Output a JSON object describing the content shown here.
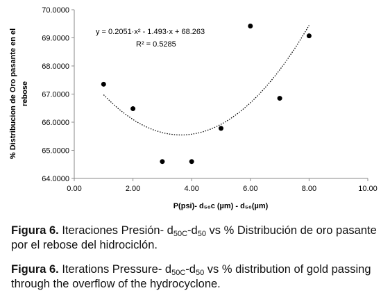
{
  "chart_data": {
    "type": "scatter",
    "xlabel": "P(psi)- d₅₀c (µm) - d₅₀(µm)",
    "ylabel_line1": "% Distribucion de Oro pasante en el",
    "ylabel_line2": "rebose",
    "xlim": [
      0,
      10
    ],
    "ylim": [
      64,
      70
    ],
    "xticks": [
      0,
      2,
      4,
      6,
      8,
      10
    ],
    "xtick_labels": [
      "0.00",
      "2.00",
      "4.00",
      "6.00",
      "8.00",
      "10.00"
    ],
    "yticks": [
      64,
      65,
      66,
      67,
      68,
      69,
      70
    ],
    "ytick_labels": [
      "64.0000",
      "65.0000",
      "66.0000",
      "67.0000",
      "68.0000",
      "69.0000",
      "70.0000"
    ],
    "grid": false,
    "legend": "none",
    "points": [
      {
        "x": 1,
        "y": 67.35
      },
      {
        "x": 2,
        "y": 66.48
      },
      {
        "x": 3,
        "y": 64.6
      },
      {
        "x": 4,
        "y": 64.6
      },
      {
        "x": 5,
        "y": 65.78
      },
      {
        "x": 6,
        "y": 69.42
      },
      {
        "x": 7,
        "y": 66.85
      },
      {
        "x": 8,
        "y": 69.07
      }
    ],
    "trendline": {
      "type": "polynomial",
      "coefficients": [
        0.2051,
        -1.493,
        68.263
      ],
      "x_range": [
        1,
        8
      ],
      "equation": "y = 0.2051·x² - 1.493·x + 68.263",
      "r_squared": "R² = 0.5285"
    },
    "marker_color": "#000000",
    "trend_color": "#000000"
  },
  "captions": {
    "es": {
      "label": "Figura 6.",
      "part1": " Iteraciones Presión- d",
      "sub1": "50C",
      "part2": "-d",
      "sub2": "50",
      "part3": " vs % Distribución de oro pasante por el rebose del hidrociclón."
    },
    "en": {
      "label": "Figura 6.",
      "part1": " Iterations Pressure- d",
      "sub1": "50C",
      "part2": "-d",
      "sub2": "50",
      "part3": " vs % distribution of gold passing through the overflow of the hydrocyclone."
    }
  }
}
